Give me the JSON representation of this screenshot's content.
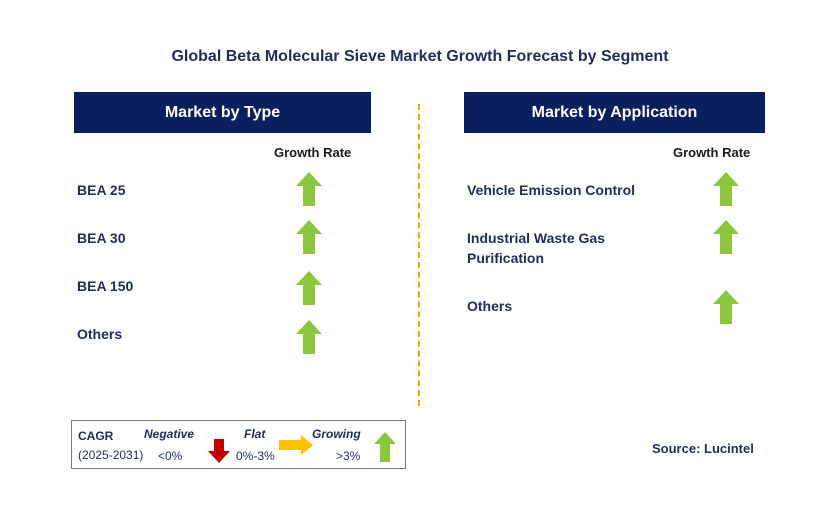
{
  "title": "Global Beta Molecular Sieve Market Growth Forecast by Segment",
  "left_panel": {
    "header": "Market by Type",
    "growth_label": "Growth Rate",
    "items": [
      {
        "label": "BEA 25",
        "trend": "growing"
      },
      {
        "label": "BEA 30",
        "trend": "growing"
      },
      {
        "label": "BEA 150",
        "trend": "growing"
      },
      {
        "label": "Others",
        "trend": "growing"
      }
    ]
  },
  "right_panel": {
    "header": "Market by Application",
    "growth_label": "Growth Rate",
    "items": [
      {
        "label_line1": "Vehicle Emission Control",
        "label_line2": "",
        "trend": "growing"
      },
      {
        "label_line1": "Industrial Waste Gas",
        "label_line2": "Purification",
        "trend": "growing"
      },
      {
        "label_line1": "Others",
        "label_line2": "",
        "trend": "growing"
      }
    ]
  },
  "legend": {
    "cagr_label": "CAGR",
    "period": "(2025-2031)",
    "negative_label": "Negative",
    "negative_value": "<0%",
    "flat_label": "Flat",
    "flat_value": "0%-3%",
    "growing_label": "Growing",
    "growing_value": ">3%"
  },
  "source": "Source: Lucintel",
  "colors": {
    "header_bg": "#0b1f5e",
    "text_navy": "#1f2d5c",
    "arrow_green": "#8cc63f",
    "arrow_red": "#c00000",
    "arrow_orange": "#ffc000",
    "divider": "#f0a500"
  },
  "icons": {
    "growing": "up-arrow-green-icon",
    "negative": "down-arrow-red-icon",
    "flat": "right-arrow-orange-icon"
  }
}
